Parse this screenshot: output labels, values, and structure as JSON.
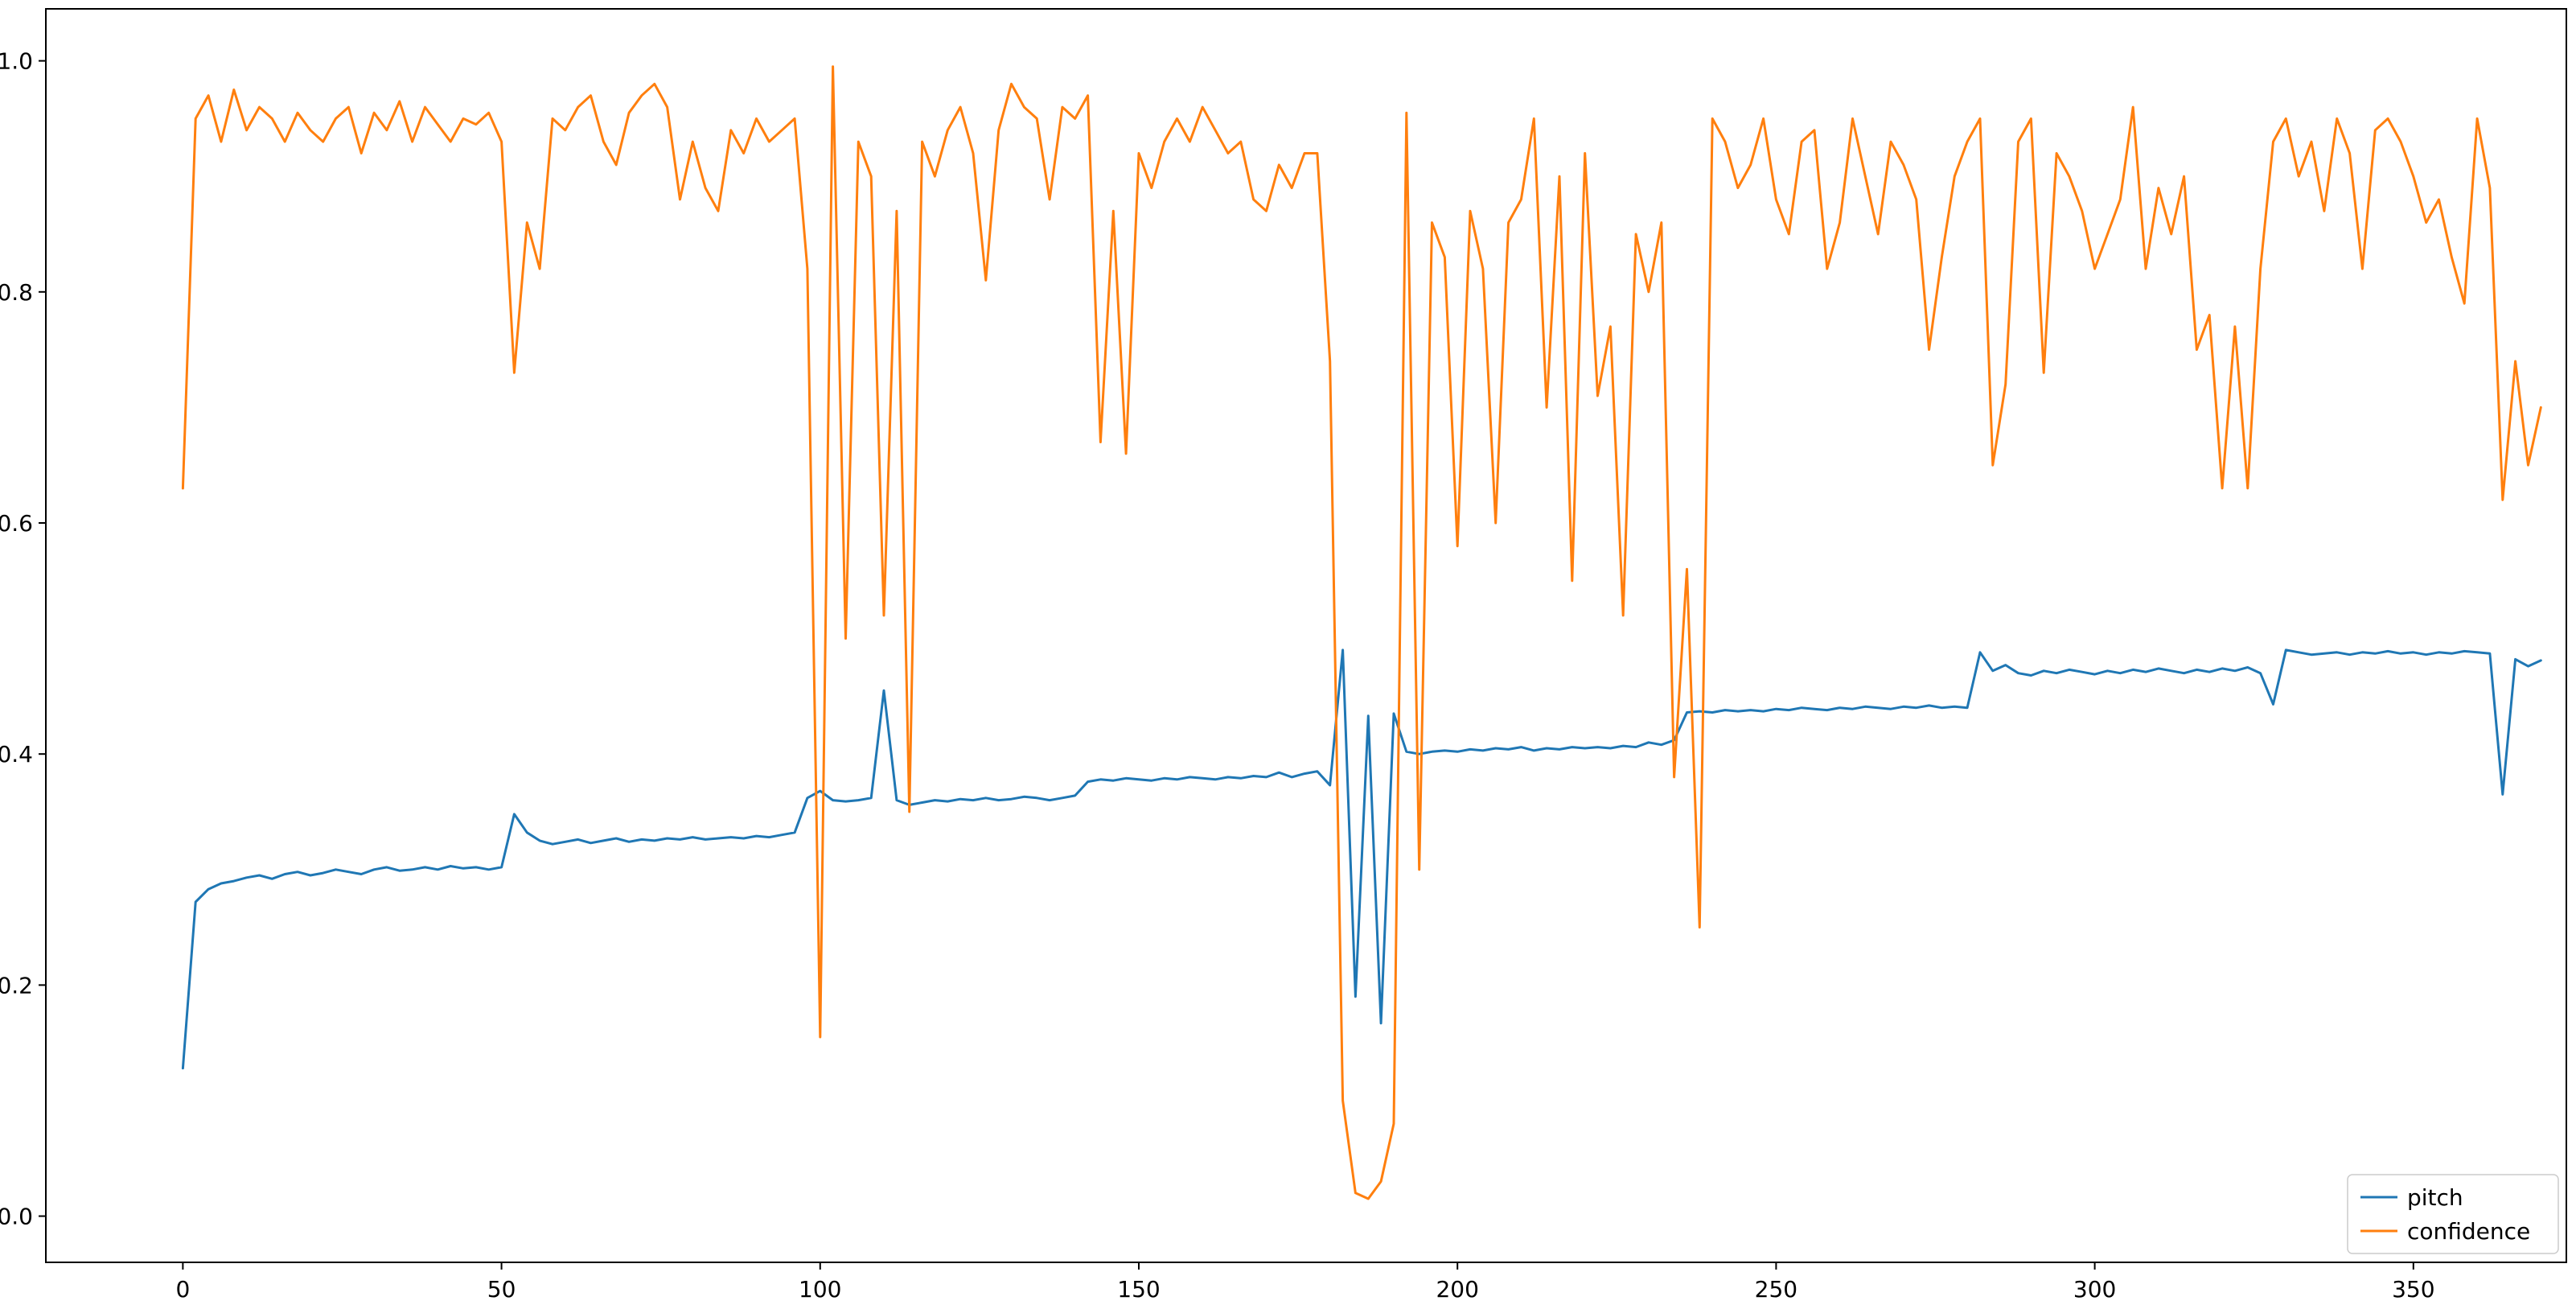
{
  "figure": {
    "background": "#ffffff"
  },
  "chart_data": {
    "type": "line",
    "title": "",
    "xlabel": "",
    "ylabel": "",
    "grid": false,
    "xlim": [
      -21.5,
      374
    ],
    "ylim": [
      -0.04,
      1.045
    ],
    "xticks": [
      0,
      50,
      100,
      150,
      200,
      250,
      300,
      350
    ],
    "yticks": [
      0.0,
      0.2,
      0.4,
      0.6,
      0.8,
      1.0
    ],
    "legend": {
      "position": "lower right",
      "entries": [
        "pitch",
        "confidence"
      ],
      "edge_color": "#cccccc",
      "face_color": "#ffffff"
    },
    "x": [
      0,
      2,
      4,
      6,
      8,
      10,
      12,
      14,
      16,
      18,
      20,
      22,
      24,
      26,
      28,
      30,
      32,
      34,
      36,
      38,
      40,
      42,
      44,
      46,
      48,
      50,
      52,
      54,
      56,
      58,
      60,
      62,
      64,
      66,
      68,
      70,
      72,
      74,
      76,
      78,
      80,
      82,
      84,
      86,
      88,
      90,
      92,
      94,
      96,
      98,
      100,
      102,
      104,
      106,
      108,
      110,
      112,
      114,
      116,
      118,
      120,
      122,
      124,
      126,
      128,
      130,
      132,
      134,
      136,
      138,
      140,
      142,
      144,
      146,
      148,
      150,
      152,
      154,
      156,
      158,
      160,
      162,
      164,
      166,
      168,
      170,
      172,
      174,
      176,
      178,
      180,
      182,
      184,
      186,
      188,
      190,
      192,
      194,
      196,
      198,
      200,
      202,
      204,
      206,
      208,
      210,
      212,
      214,
      216,
      218,
      220,
      222,
      224,
      226,
      228,
      230,
      232,
      234,
      236,
      238,
      240,
      242,
      244,
      246,
      248,
      250,
      252,
      254,
      256,
      258,
      260,
      262,
      264,
      266,
      268,
      270,
      272,
      274,
      276,
      278,
      280,
      282,
      284,
      286,
      288,
      290,
      292,
      294,
      296,
      298,
      300,
      302,
      304,
      306,
      308,
      310,
      312,
      314,
      316,
      318,
      320,
      322,
      324,
      326,
      328,
      330,
      332,
      334,
      336,
      338,
      340,
      342,
      344,
      346,
      348,
      350,
      352,
      354,
      356,
      358,
      360,
      362,
      364,
      366,
      368,
      370
    ],
    "series": [
      {
        "name": "pitch",
        "color": "#1f77b4",
        "values": [
          0.128,
          0.272,
          0.283,
          0.288,
          0.29,
          0.293,
          0.295,
          0.292,
          0.296,
          0.298,
          0.295,
          0.297,
          0.3,
          0.298,
          0.296,
          0.3,
          0.302,
          0.299,
          0.3,
          0.302,
          0.3,
          0.303,
          0.301,
          0.302,
          0.3,
          0.302,
          0.348,
          0.332,
          0.325,
          0.322,
          0.324,
          0.326,
          0.323,
          0.325,
          0.327,
          0.324,
          0.326,
          0.325,
          0.327,
          0.326,
          0.328,
          0.326,
          0.327,
          0.328,
          0.327,
          0.329,
          0.328,
          0.33,
          0.332,
          0.362,
          0.368,
          0.36,
          0.359,
          0.36,
          0.362,
          0.455,
          0.36,
          0.356,
          0.358,
          0.36,
          0.359,
          0.361,
          0.36,
          0.362,
          0.36,
          0.361,
          0.363,
          0.362,
          0.36,
          0.362,
          0.364,
          0.376,
          0.378,
          0.377,
          0.379,
          0.378,
          0.377,
          0.379,
          0.378,
          0.38,
          0.379,
          0.378,
          0.38,
          0.379,
          0.381,
          0.38,
          0.384,
          0.38,
          0.383,
          0.385,
          0.373,
          0.49,
          0.19,
          0.433,
          0.167,
          0.435,
          0.402,
          0.4,
          0.402,
          0.403,
          0.402,
          0.404,
          0.403,
          0.405,
          0.404,
          0.406,
          0.403,
          0.405,
          0.404,
          0.406,
          0.405,
          0.406,
          0.405,
          0.407,
          0.406,
          0.41,
          0.408,
          0.412,
          0.436,
          0.437,
          0.436,
          0.438,
          0.437,
          0.438,
          0.437,
          0.439,
          0.438,
          0.44,
          0.439,
          0.438,
          0.44,
          0.439,
          0.441,
          0.44,
          0.439,
          0.441,
          0.44,
          0.442,
          0.44,
          0.441,
          0.44,
          0.488,
          0.472,
          0.477,
          0.47,
          0.468,
          0.472,
          0.47,
          0.473,
          0.471,
          0.469,
          0.472,
          0.47,
          0.473,
          0.471,
          0.474,
          0.472,
          0.47,
          0.473,
          0.471,
          0.474,
          0.472,
          0.475,
          0.47,
          0.443,
          0.49,
          0.488,
          0.486,
          0.487,
          0.488,
          0.486,
          0.488,
          0.487,
          0.489,
          0.487,
          0.488,
          0.486,
          0.488,
          0.487,
          0.489,
          0.488,
          0.487,
          0.365,
          0.482,
          0.476,
          0.481
        ]
      },
      {
        "name": "confidence",
        "color": "#ff7f0e",
        "values": [
          0.63,
          0.95,
          0.97,
          0.93,
          0.975,
          0.94,
          0.96,
          0.95,
          0.93,
          0.955,
          0.94,
          0.93,
          0.95,
          0.96,
          0.92,
          0.955,
          0.94,
          0.965,
          0.93,
          0.96,
          0.945,
          0.93,
          0.95,
          0.945,
          0.955,
          0.93,
          0.73,
          0.86,
          0.82,
          0.95,
          0.94,
          0.96,
          0.97,
          0.93,
          0.91,
          0.955,
          0.97,
          0.98,
          0.96,
          0.88,
          0.93,
          0.89,
          0.87,
          0.94,
          0.92,
          0.95,
          0.93,
          0.94,
          0.95,
          0.82,
          0.155,
          0.995,
          0.5,
          0.93,
          0.9,
          0.52,
          0.87,
          0.35,
          0.93,
          0.9,
          0.94,
          0.96,
          0.92,
          0.81,
          0.94,
          0.98,
          0.96,
          0.95,
          0.88,
          0.96,
          0.95,
          0.97,
          0.67,
          0.87,
          0.66,
          0.92,
          0.89,
          0.93,
          0.95,
          0.93,
          0.96,
          0.94,
          0.92,
          0.93,
          0.88,
          0.87,
          0.91,
          0.89,
          0.92,
          0.92,
          0.74,
          0.1,
          0.02,
          0.015,
          0.03,
          0.08,
          0.955,
          0.3,
          0.86,
          0.83,
          0.58,
          0.87,
          0.82,
          0.6,
          0.86,
          0.88,
          0.95,
          0.7,
          0.9,
          0.55,
          0.92,
          0.71,
          0.77,
          0.52,
          0.85,
          0.8,
          0.86,
          0.38,
          0.56,
          0.25,
          0.95,
          0.93,
          0.89,
          0.91,
          0.95,
          0.88,
          0.85,
          0.93,
          0.94,
          0.82,
          0.86,
          0.95,
          0.9,
          0.85,
          0.93,
          0.91,
          0.88,
          0.75,
          0.83,
          0.9,
          0.93,
          0.95,
          0.65,
          0.72,
          0.93,
          0.95,
          0.73,
          0.92,
          0.9,
          0.87,
          0.82,
          0.85,
          0.88,
          0.96,
          0.82,
          0.89,
          0.85,
          0.9,
          0.75,
          0.78,
          0.63,
          0.77,
          0.63,
          0.82,
          0.93,
          0.95,
          0.9,
          0.93,
          0.87,
          0.95,
          0.92,
          0.82,
          0.94,
          0.95,
          0.93,
          0.9,
          0.86,
          0.88,
          0.83,
          0.79,
          0.95,
          0.89,
          0.62,
          0.74,
          0.65,
          0.7
        ]
      }
    ]
  }
}
